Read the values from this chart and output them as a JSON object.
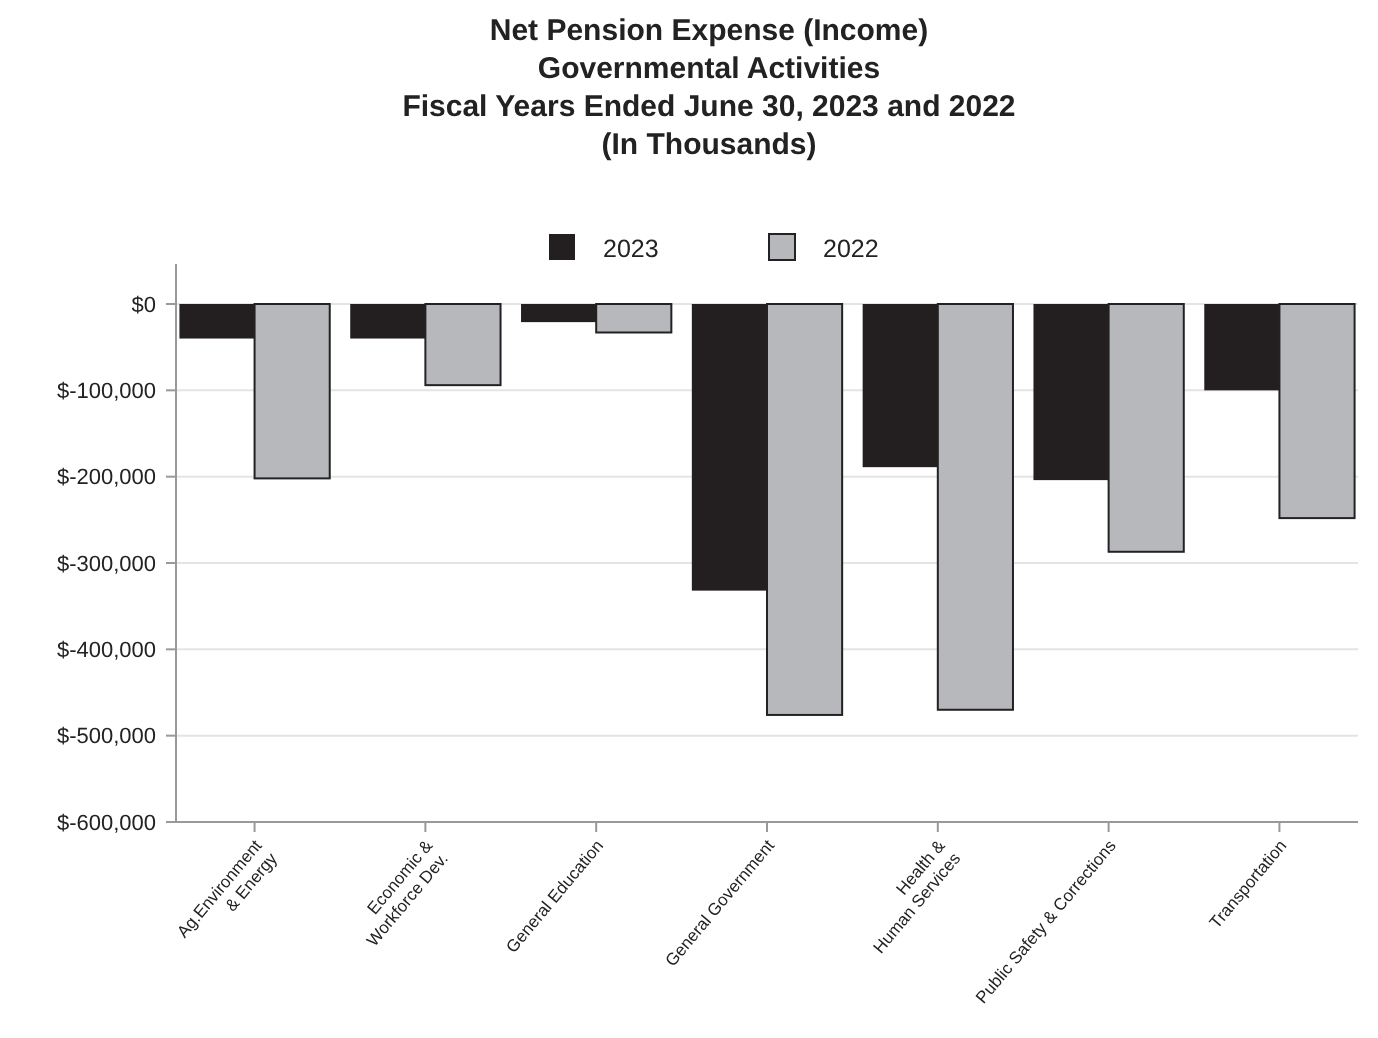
{
  "chart_data": {
    "type": "bar",
    "title": "Net Pension Expense (Income)\nGovernmental Activities\nFiscal Years Ended June 30, 2023 and 2022\n(In Thousands)",
    "categories": [
      "Ag.Environment\n& Energy",
      "Economic &\nWorkforce Dev.",
      "General Education",
      "General Government",
      "Health &\nHuman Services",
      "Public Safety & Corrections",
      "Transportation"
    ],
    "series": [
      {
        "name": "2023",
        "color": "#231f20",
        "values": [
          -40000,
          -40000,
          -21000,
          -332000,
          -189000,
          -204000,
          -100000
        ]
      },
      {
        "name": "2022",
        "color": "#b7b8bb",
        "values": [
          -202000,
          -94000,
          -33000,
          -476000,
          -470000,
          -287000,
          -248000
        ]
      }
    ],
    "ylim": [
      -600000,
      0
    ],
    "yticks": [
      {
        "value": -600000,
        "label": "$-600,000"
      },
      {
        "value": -500000,
        "label": "$-500,000"
      },
      {
        "value": -400000,
        "label": "$-400,000"
      },
      {
        "value": -300000,
        "label": "$-300,000"
      },
      {
        "value": -200000,
        "label": "$-200,000"
      },
      {
        "value": -100000,
        "label": "$-100,000"
      },
      {
        "value": 0,
        "label": "$0"
      }
    ],
    "grid": "y",
    "legend": "top"
  }
}
